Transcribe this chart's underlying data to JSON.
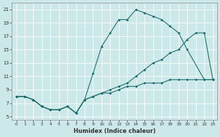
{
  "title": "",
  "xlabel": "Humidex (Indice chaleur)",
  "bg_color": "#cce8e8",
  "grid_color": "#aad4d4",
  "line_color": "#1a6b6b",
  "xlim": [
    -0.5,
    23.5
  ],
  "ylim": [
    4.5,
    22
  ],
  "xticks": [
    0,
    1,
    2,
    3,
    4,
    5,
    6,
    7,
    8,
    9,
    10,
    11,
    12,
    13,
    14,
    15,
    16,
    17,
    18,
    19,
    20,
    21,
    22,
    23
  ],
  "yticks": [
    5,
    7,
    9,
    11,
    13,
    15,
    17,
    19,
    21
  ],
  "line1_x": [
    0,
    1,
    2,
    3,
    4,
    5,
    6,
    7,
    8,
    9,
    10,
    11,
    12,
    13,
    14,
    15,
    16,
    17,
    18,
    19,
    20,
    22,
    23
  ],
  "line1_y": [
    8,
    8,
    7.5,
    6.5,
    6.0,
    6.0,
    6.5,
    5.5,
    7.5,
    11.5,
    15.5,
    17.5,
    19.5,
    19.5,
    21,
    20.5,
    20,
    19.5,
    18.5,
    17.5,
    15,
    10.5,
    10.5
  ],
  "line2_x": [
    0,
    1,
    2,
    3,
    4,
    5,
    6,
    7,
    8,
    9,
    10,
    11,
    12,
    13,
    14,
    15,
    16,
    17,
    18,
    19,
    20,
    21,
    22,
    23
  ],
  "line2_y": [
    8,
    8,
    7.5,
    6.5,
    6.0,
    6.0,
    6.5,
    5.5,
    7.5,
    8,
    8.5,
    9,
    9.5,
    10,
    11,
    12,
    13,
    13.5,
    14.5,
    15,
    16.5,
    17.5,
    17.5,
    10.5
  ],
  "line3_x": [
    0,
    1,
    2,
    3,
    4,
    5,
    6,
    7,
    8,
    9,
    10,
    11,
    12,
    13,
    14,
    15,
    16,
    17,
    18,
    19,
    20,
    21,
    22,
    23
  ],
  "line3_y": [
    8,
    8,
    7.5,
    6.5,
    6.0,
    6.0,
    6.5,
    5.5,
    7.5,
    8,
    8.5,
    8.5,
    9,
    9.5,
    9.5,
    10,
    10,
    10,
    10.5,
    10.5,
    10.5,
    10.5,
    10.5,
    10.5
  ]
}
